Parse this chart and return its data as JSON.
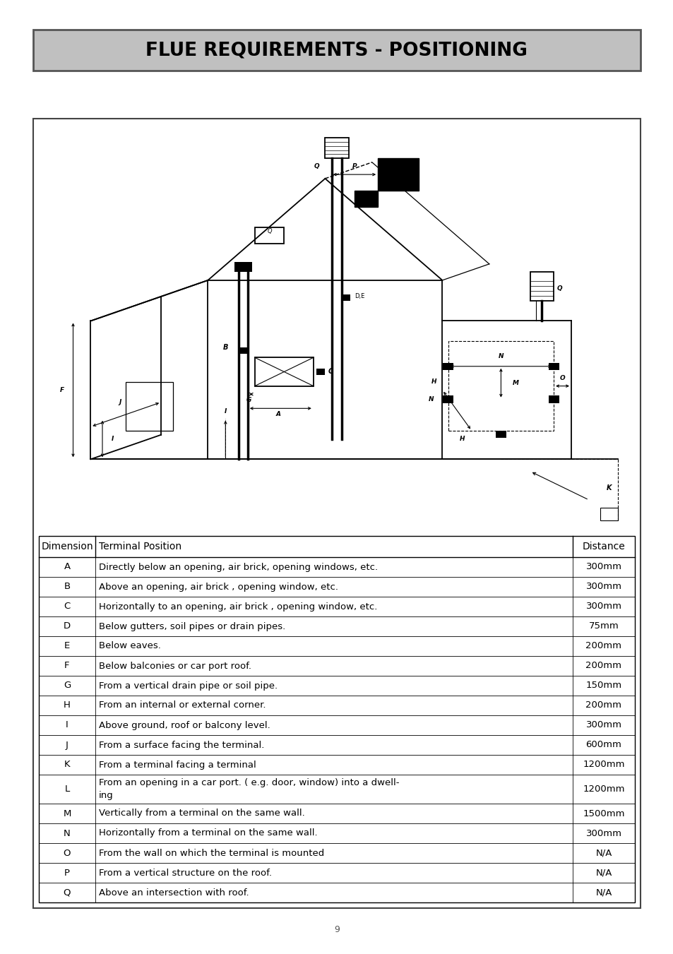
{
  "title": "FLUE REQUIREMENTS - POSITIONING",
  "title_bg": "#c0c0c0",
  "title_fontsize": 19,
  "page_number": "9",
  "table_headers": [
    "Dimension",
    "Terminal Position",
    "Distance"
  ],
  "table_rows": [
    [
      "A",
      "Directly below an opening, air brick, opening windows, etc.",
      "300mm"
    ],
    [
      "B",
      "Above an opening, air brick , opening window, etc.",
      "300mm"
    ],
    [
      "C",
      "Horizontally to an opening, air brick , opening window, etc.",
      "300mm"
    ],
    [
      "D",
      "Below gutters, soil pipes or drain pipes.",
      "75mm"
    ],
    [
      "E",
      "Below eaves.",
      "200mm"
    ],
    [
      "F",
      "Below balconies or car port roof.",
      "200mm"
    ],
    [
      "G",
      "From a vertical drain pipe or soil pipe.",
      "150mm"
    ],
    [
      "H",
      "From an internal or external corner.",
      "200mm"
    ],
    [
      "I",
      "Above ground, roof or balcony level.",
      "300mm"
    ],
    [
      "J",
      "From a surface facing the terminal.",
      "600mm"
    ],
    [
      "K",
      "From a terminal facing a terminal",
      "1200mm"
    ],
    [
      "L",
      "From an opening in a car port. ( e.g. door, window) into a dwell-\ning",
      "1200mm"
    ],
    [
      "M",
      "Vertically from a terminal on the same wall.",
      "1500mm"
    ],
    [
      "N",
      "Horizontally from a terminal on the same wall.",
      "300mm"
    ],
    [
      "O",
      "From the wall on which the terminal is mounted",
      "N/A"
    ],
    [
      "P",
      "From a vertical structure on the roof.",
      "N/A"
    ],
    [
      "Q",
      "Above an intersection with roof.",
      "N/A"
    ]
  ],
  "bg_color": "#ffffff",
  "text_color": "#000000",
  "table_fontsize": 9.5,
  "header_fontsize": 10
}
